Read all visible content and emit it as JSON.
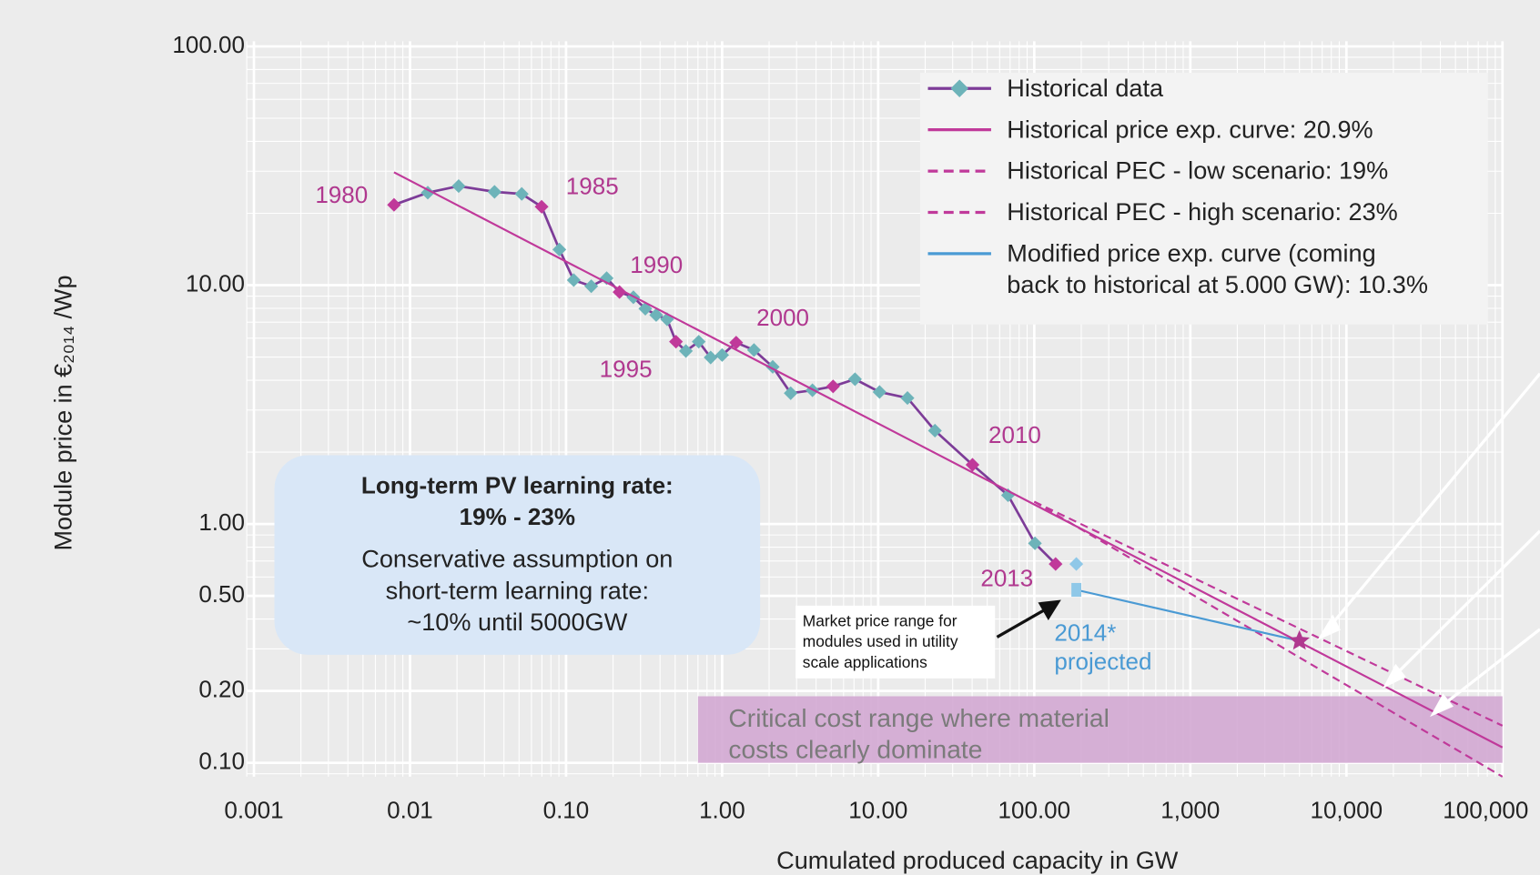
{
  "chart_data": {
    "type": "line",
    "log_x": true,
    "log_y": true,
    "grid": true,
    "minor_grid": true,
    "x_label": "Cumulated produced capacity in GW",
    "y_label": "Module price in €₂₀₁₄ /Wp",
    "xlim": [
      0.0009,
      100000
    ],
    "ylim": [
      0.0875,
      105
    ],
    "xticks": [
      0.001,
      0.01,
      {
        "value": 0.1,
        "label": "0.10"
      },
      {
        "value": 1,
        "label": "1.00"
      },
      {
        "value": 10,
        "label": "10.00"
      },
      {
        "value": 100,
        "label": "100.00"
      },
      {
        "value": 1000,
        "label": "1,000"
      },
      {
        "value": 10000,
        "label": "10,000"
      },
      {
        "value": 100000,
        "label": "100,000"
      }
    ],
    "yticks": [
      {
        "value": 100,
        "label": "100.00"
      },
      {
        "value": 10,
        "label": "10.00"
      },
      {
        "value": 1,
        "label": "1.00"
      },
      {
        "value": 0.5,
        "label": "0.50"
      },
      {
        "value": 0.2,
        "label": "0.20"
      },
      {
        "value": 0.1,
        "label": "0.10"
      }
    ],
    "legend": "upper right",
    "series": [
      {
        "name": "Historical data",
        "color": "#7d3c98",
        "marker": "diamond",
        "marker_colors": [
          "#c0399a",
          "#6db3b9",
          "#6db3b9",
          "#6db3b9",
          "#6db3b9",
          "#c0399a",
          "#6db3b9",
          "#6db3b9",
          "#6db3b9",
          "#6db3b9",
          "#c0399a",
          "#6db3b9",
          "#6db3b9",
          "#6db3b9",
          "#6db3b9",
          "#c0399a",
          "#6db3b9",
          "#6db3b9",
          "#6db3b9",
          "#6db3b9",
          "#c0399a",
          "#6db3b9",
          "#6db3b9",
          "#6db3b9",
          "#6db3b9",
          "#c0399a",
          "#6db3b9",
          "#6db3b9",
          "#6db3b9",
          "#6db3b9",
          "#c0399a",
          "#6db3b9",
          "#6db3b9",
          "#c0399a"
        ],
        "x": [
          0.0079,
          0.013,
          0.0205,
          0.0348,
          0.052,
          0.0697,
          0.0906,
          0.112,
          0.145,
          0.182,
          0.22,
          0.27,
          0.322,
          0.378,
          0.444,
          0.506,
          0.586,
          0.708,
          0.844,
          1.0,
          1.23,
          1.6,
          2.11,
          2.75,
          3.79,
          5.14,
          7.1,
          10.2,
          15.4,
          23.1,
          40.2,
          67.9,
          101,
          137
        ],
        "values": [
          21.7,
          24.4,
          26.0,
          24.6,
          24.1,
          21.3,
          14.1,
          10.5,
          9.9,
          10.7,
          9.36,
          8.9,
          7.97,
          7.5,
          7.2,
          5.8,
          5.3,
          5.8,
          4.98,
          5.1,
          5.75,
          5.35,
          4.55,
          3.53,
          3.63,
          3.77,
          4.04,
          3.57,
          3.37,
          2.46,
          1.77,
          1.32,
          0.83,
          0.68
        ]
      },
      {
        "name": "Historical price exp. curve: 20.9%",
        "color": "#c0399a",
        "x": [
          0.0079,
          100000
        ],
        "values": [
          29.7,
          0.116
        ]
      },
      {
        "name": "Historical PEC - low scenario: 19%",
        "color": "#c0399a",
        "dashed": true,
        "x": [
          100,
          100000
        ],
        "values": [
          1.24,
          0.143
        ]
      },
      {
        "name": "Historical PEC - high scenario: 23%",
        "color": "#c0399a",
        "dashed": true,
        "x": [
          100,
          100000
        ],
        "values": [
          1.24,
          0.0875
        ]
      },
      {
        "name": "Modified price exp. curve (coming\nback to historical at 5.000 GW): 10.3%",
        "color": "#4a9ad4",
        "end_marker": "star",
        "end_marker_color": "#b0388f",
        "x": [
          186,
          5000
        ],
        "values": [
          0.53,
          0.324
        ]
      }
    ],
    "projected": {
      "label": "2014*\nprojected",
      "color": "#4a9ad4",
      "marker_color": "#8fc8e8",
      "x": [
        186,
        186
      ],
      "values": [
        0.68,
        0.53
      ]
    },
    "year_labels": [
      "1980",
      "1985",
      "1990",
      "1995",
      "2000",
      "2010",
      "2013"
    ],
    "year_label_color": "#b0388f",
    "band": {
      "label": "Critical cost range where material\ncosts clearly dominate",
      "color": "#d3a9d3",
      "xlim": [
        0.7,
        100000
      ],
      "ylim": [
        0.1,
        0.19
      ]
    },
    "info_box": {
      "heading": "Long-term PV learning rate:\n19% - 23%",
      "text": "Conservative assumption on\nshort-term learning rate:\n~10% until 5000GW"
    },
    "market_note": "Market price range for\nmodules used in utility\nscale applications"
  }
}
